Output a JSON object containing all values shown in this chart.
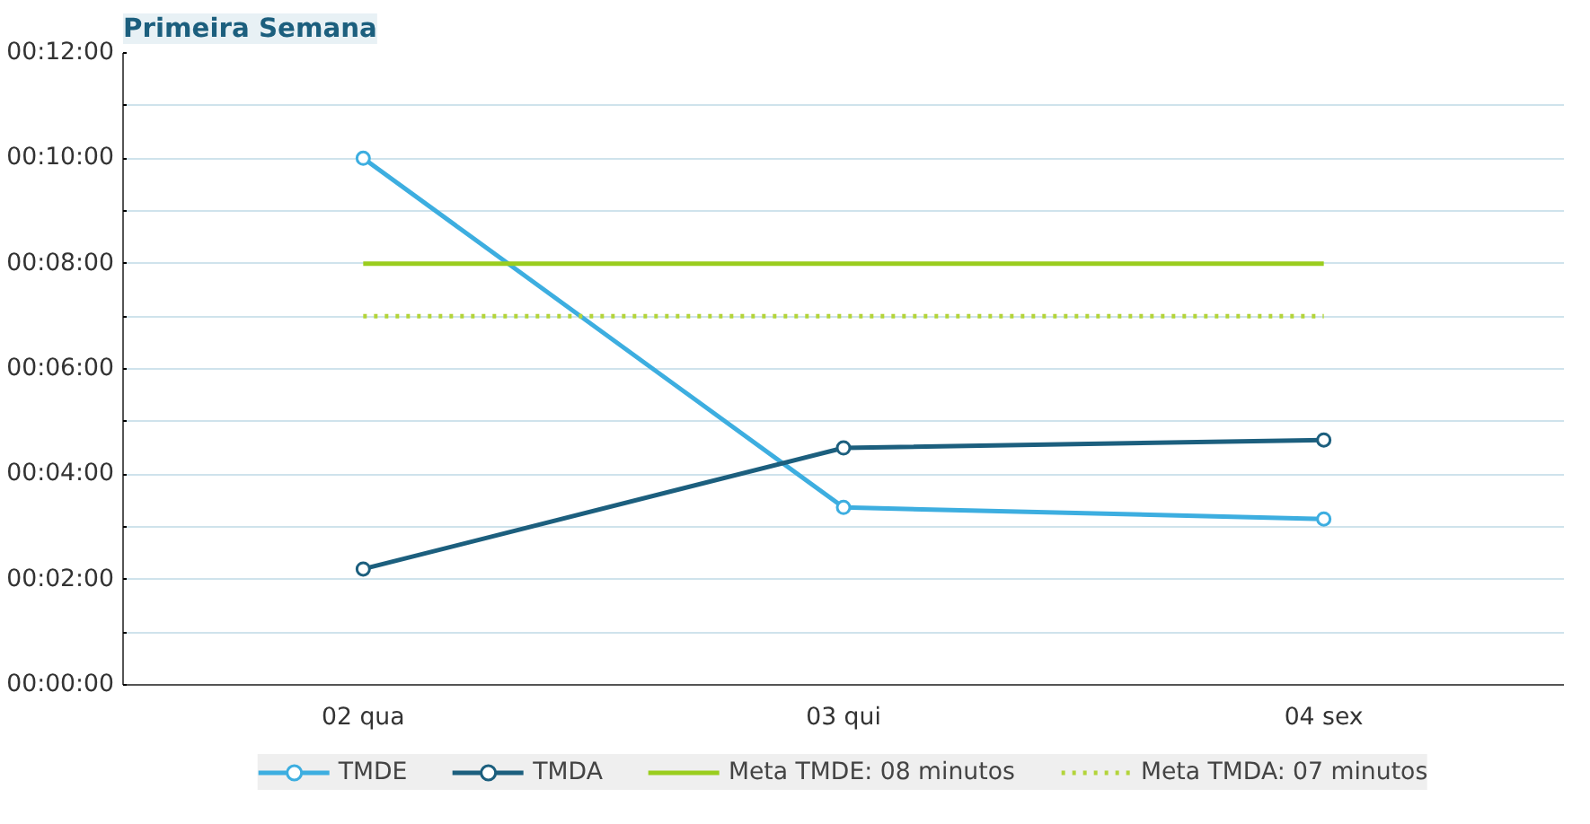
{
  "chart_data": {
    "type": "line",
    "title": "Primeira Semana",
    "categories": [
      "02 qua",
      "03 qui",
      "04 sex"
    ],
    "series": [
      {
        "name": "TMDE",
        "color": "#3daee0",
        "values": [
          10,
          3.37,
          3.15
        ],
        "marker": "circle",
        "line_style": "solid"
      },
      {
        "name": "TMDA",
        "color": "#1c5f7e",
        "values": [
          2.2,
          4.5,
          4.65
        ],
        "marker": "circle",
        "line_style": "solid"
      },
      {
        "name": "Meta TMDE: 08 minutos",
        "color": "#9acd1e",
        "values": [
          8,
          8,
          8
        ],
        "marker": "none",
        "line_style": "solid"
      },
      {
        "name": "Meta TMDA: 07 minutos",
        "color": "#b3d43a",
        "values": [
          7,
          7,
          7
        ],
        "marker": "none",
        "line_style": "dotted"
      }
    ],
    "ylim": [
      0,
      12
    ],
    "yticks": [
      {
        "value": 0,
        "label": "00:00:00"
      },
      {
        "value": 1,
        "label": null
      },
      {
        "value": 2,
        "label": "00:02:00"
      },
      {
        "value": 3,
        "label": null
      },
      {
        "value": 4,
        "label": "00:04:00"
      },
      {
        "value": 5,
        "label": null
      },
      {
        "value": 6,
        "label": "00:06:00"
      },
      {
        "value": 7,
        "label": null
      },
      {
        "value": 8,
        "label": "00:08:00"
      },
      {
        "value": 9,
        "label": null
      },
      {
        "value": 10,
        "label": "00:10:00"
      },
      {
        "value": 11,
        "label": null
      },
      {
        "value": 12,
        "label": "00:12:00"
      }
    ],
    "grid": "y",
    "legend": "bottom"
  }
}
